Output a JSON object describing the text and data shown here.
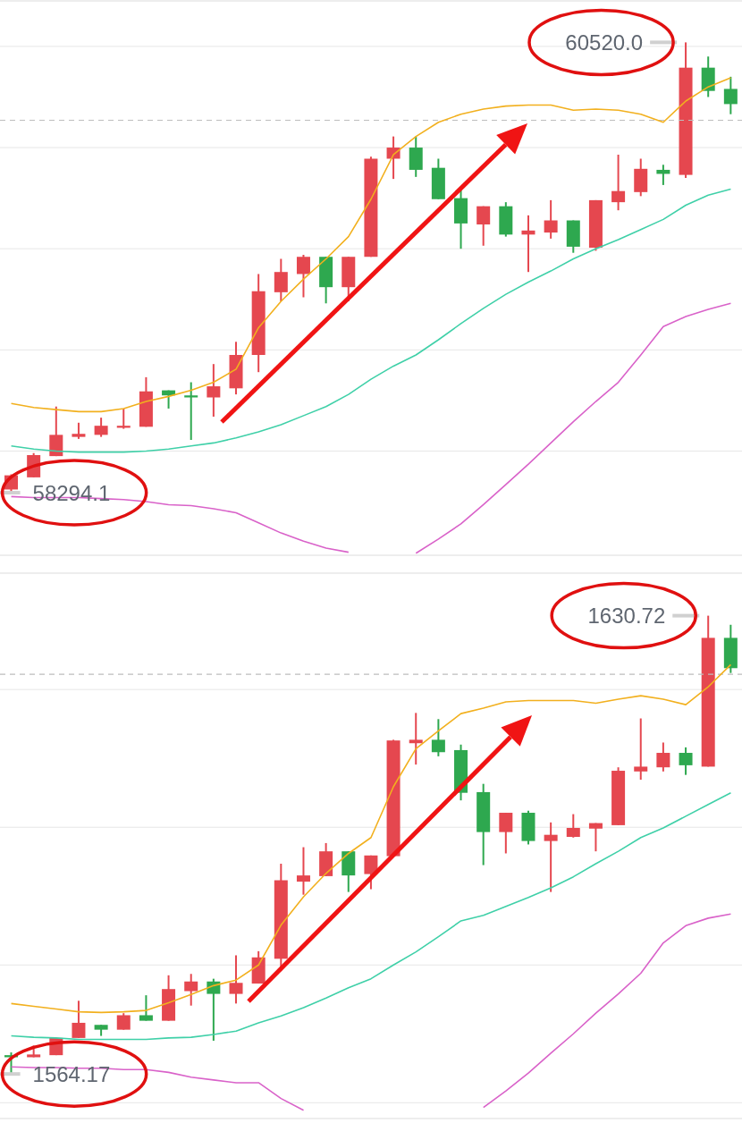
{
  "chart_data": [
    {
      "type": "candlestick",
      "categories": [
        null,
        null,
        null,
        null,
        null,
        null,
        null,
        null,
        null,
        null,
        null,
        null,
        null,
        null,
        null,
        null,
        null,
        null,
        null,
        null,
        null,
        null,
        null,
        null,
        null,
        null,
        null,
        null,
        null,
        null,
        null,
        null,
        null
      ],
      "ohlc": [
        [
          58310,
          58385,
          58294.1,
          58380
        ],
        [
          58370,
          58490,
          58370,
          58480
        ],
        [
          58475,
          58720,
          58475,
          58580
        ],
        [
          58570,
          58640,
          58560,
          58585
        ],
        [
          58580,
          58665,
          58570,
          58625
        ],
        [
          58615,
          58710,
          58610,
          58625
        ],
        [
          58620,
          58865,
          58620,
          58795
        ],
        [
          58800,
          58800,
          58710,
          58775
        ],
        [
          58775,
          58840,
          58555,
          58765
        ],
        [
          58765,
          58930,
          58670,
          58820
        ],
        [
          58810,
          59040,
          58780,
          58975
        ],
        [
          58975,
          59375,
          58890,
          59290
        ],
        [
          59285,
          59450,
          59240,
          59385
        ],
        [
          59375,
          59470,
          59260,
          59460
        ],
        [
          59460,
          59460,
          59230,
          59310
        ],
        [
          59310,
          59460,
          59240,
          59460
        ],
        [
          59460,
          59955,
          59460,
          59945
        ],
        [
          59945,
          60055,
          59845,
          60000
        ],
        [
          60000,
          60055,
          59855,
          59890
        ],
        [
          59900,
          59945,
          59745,
          59745
        ],
        [
          59750,
          59790,
          59500,
          59625
        ],
        [
          59620,
          59710,
          59515,
          59710
        ],
        [
          59710,
          59730,
          59560,
          59570
        ],
        [
          59570,
          59665,
          59385,
          59590
        ],
        [
          59580,
          59740,
          59550,
          59640
        ],
        [
          59640,
          59640,
          59480,
          59510
        ],
        [
          59505,
          59740,
          59490,
          59740
        ],
        [
          59730,
          59965,
          59690,
          59785
        ],
        [
          59780,
          59945,
          59760,
          59895
        ],
        [
          59890,
          59915,
          59815,
          59870
        ],
        [
          59865,
          60520.0,
          59850,
          60395
        ],
        [
          60395,
          60450,
          60250,
          60280
        ],
        [
          60290,
          60350,
          60165,
          60215
        ]
      ],
      "colors": [
        "#e5474f",
        "#e5474f",
        "#e5474f",
        "#e5474f",
        "#e5474f",
        "#e5474f",
        "#e5474f",
        "#2ea84f",
        "#2ea84f",
        "#e5474f",
        "#e5474f",
        "#e5474f",
        "#e5474f",
        "#e5474f",
        "#2ea84f",
        "#e5474f",
        "#e5474f",
        "#e5474f",
        "#2ea84f",
        "#2ea84f",
        "#2ea84f",
        "#e5474f",
        "#2ea84f",
        "#e5474f",
        "#e5474f",
        "#2ea84f",
        "#e5474f",
        "#e5474f",
        "#e5474f",
        "#2ea84f",
        "#e5474f",
        "#2ea84f",
        "#2ea84f"
      ],
      "series": [
        {
          "type": "line",
          "color": "#f2b01e",
          "values": [
            58735,
            58715,
            58705,
            58695,
            58695,
            58710,
            58745,
            58770,
            58800,
            58840,
            58905,
            59110,
            59240,
            59350,
            59450,
            59560,
            59745,
            59965,
            60055,
            60125,
            60165,
            60190,
            60205,
            60210,
            60210,
            60185,
            60190,
            60185,
            60165,
            60125,
            60230,
            60300,
            60345
          ]
        },
        {
          "type": "line",
          "color": "#3fd0a8",
          "values": [
            58525,
            58510,
            58500,
            58495,
            58495,
            58495,
            58500,
            58510,
            58525,
            58540,
            58565,
            58595,
            58630,
            58675,
            58720,
            58780,
            58855,
            58920,
            58975,
            59050,
            59130,
            59205,
            59275,
            59335,
            59390,
            59450,
            59500,
            59545,
            59595,
            59645,
            59715,
            59765,
            59795
          ]
        },
        {
          "type": "line",
          "color": "#d962c9",
          "values": [
            58275,
            58270,
            58270,
            58270,
            58265,
            58260,
            58250,
            58235,
            58230,
            58215,
            58195,
            58145,
            58095,
            58055,
            58020,
            58000,
            null,
            null,
            57995,
            58065,
            58140,
            58235,
            58335,
            58435,
            58540,
            58645,
            58745,
            58840,
            58975,
            59115,
            59165,
            59200,
            59230
          ]
        }
      ],
      "ylim": [
        57985,
        60725
      ],
      "yticks": [
        {
          "value": 58500,
          "label": null
        },
        {
          "value": 59000,
          "label": null
        },
        {
          "value": 59500,
          "label": null
        },
        {
          "value": 60000,
          "label": null
        },
        {
          "value": 60500,
          "label": null
        }
      ],
      "grid": "y",
      "tick_labels": false,
      "ref_lines": [
        {
          "axis": "y",
          "value": 60135,
          "color": "#bdbdbd",
          "line_style": "dashed"
        }
      ],
      "annotations": [
        "60520.0",
        "58294.1"
      ]
    },
    {
      "type": "candlestick",
      "categories": [
        null,
        null,
        null,
        null,
        null,
        null,
        null,
        null,
        null,
        null,
        null,
        null,
        null,
        null,
        null,
        null,
        null,
        null,
        null,
        null,
        null,
        null,
        null,
        null,
        null,
        null,
        null,
        null,
        null,
        null,
        null,
        null,
        null
      ],
      "ohlc": [
        [
          1566.9,
          1567.3,
          1564.17,
          1566.6
        ],
        [
          1566.6,
          1568.3,
          1566.6,
          1567.0
        ],
        [
          1566.9,
          1569.4,
          1566.9,
          1569.4
        ],
        [
          1569.4,
          1574.8,
          1569.4,
          1571.6
        ],
        [
          1571.3,
          1571.3,
          1569.7,
          1570.6
        ],
        [
          1570.6,
          1573.0,
          1570.6,
          1572.7
        ],
        [
          1572.7,
          1575.6,
          1571.9,
          1571.9
        ],
        [
          1571.9,
          1578.5,
          1571.9,
          1576.5
        ],
        [
          1576.2,
          1578.7,
          1574.1,
          1577.6
        ],
        [
          1577.6,
          1578.0,
          1569.0,
          1575.8
        ],
        [
          1575.8,
          1581.4,
          1574.4,
          1577.4
        ],
        [
          1577.3,
          1582.0,
          1577.3,
          1581.1
        ],
        [
          1580.9,
          1594.7,
          1579.1,
          1592.3
        ],
        [
          1592.1,
          1597.1,
          1590.2,
          1593.0
        ],
        [
          1592.9,
          1597.7,
          1592.9,
          1596.5
        ],
        [
          1596.5,
          1596.5,
          1590.6,
          1593.0
        ],
        [
          1593.2,
          1595.9,
          1591.0,
          1595.9
        ],
        [
          1595.8,
          1612.7,
          1595.8,
          1612.6
        ],
        [
          1612.2,
          1616.6,
          1609.1,
          1612.7
        ],
        [
          1612.7,
          1615.7,
          1610.3,
          1610.9
        ],
        [
          1611.2,
          1612.0,
          1603.9,
          1605.0
        ],
        [
          1605.1,
          1606.3,
          1594.5,
          1599.3
        ],
        [
          1599.3,
          1602.1,
          1596.2,
          1602.1
        ],
        [
          1602.1,
          1602.4,
          1597.5,
          1598.0
        ],
        [
          1598.0,
          1600.7,
          1590.6,
          1598.9
        ],
        [
          1598.6,
          1601.9,
          1598.5,
          1599.9
        ],
        [
          1599.8,
          1600.6,
          1596.5,
          1600.6
        ],
        [
          1600.3,
          1608.7,
          1600.3,
          1608.2
        ],
        [
          1608.1,
          1615.8,
          1606.9,
          1608.8
        ],
        [
          1608.7,
          1612.3,
          1608.1,
          1610.8
        ],
        [
          1610.8,
          1611.6,
          1607.6,
          1609.0
        ],
        [
          1608.8,
          1630.72,
          1608.8,
          1627.5
        ],
        [
          1627.5,
          1629.4,
          1622.4,
          1623.1
        ]
      ],
      "colors": [
        "#2ea84f",
        "#e5474f",
        "#e5474f",
        "#e5474f",
        "#2ea84f",
        "#e5474f",
        "#2ea84f",
        "#e5474f",
        "#e5474f",
        "#2ea84f",
        "#e5474f",
        "#e5474f",
        "#e5474f",
        "#e5474f",
        "#e5474f",
        "#2ea84f",
        "#e5474f",
        "#e5474f",
        "#e5474f",
        "#2ea84f",
        "#2ea84f",
        "#2ea84f",
        "#e5474f",
        "#2ea84f",
        "#e5474f",
        "#e5474f",
        "#e5474f",
        "#e5474f",
        "#e5474f",
        "#e5474f",
        "#2ea84f",
        "#e5474f",
        "#2ea84f"
      ],
      "series": [
        {
          "type": "line",
          "color": "#f2b01e",
          "values": [
            1574.4,
            1574.0,
            1573.6,
            1573.2,
            1573.1,
            1573.2,
            1573.4,
            1574.5,
            1575.7,
            1577.0,
            1577.8,
            1580.0,
            1585.8,
            1589.9,
            1593.3,
            1596.2,
            1598.5,
            1605.9,
            1611.4,
            1614.0,
            1616.5,
            1617.3,
            1618.2,
            1618.4,
            1618.4,
            1618.4,
            1618.0,
            1618.6,
            1619.1,
            1618.6,
            1617.8,
            1620.4,
            1623.6
          ]
        },
        {
          "type": "line",
          "color": "#3fd0a8",
          "values": [
            1569.7,
            1569.5,
            1569.4,
            1569.2,
            1569.2,
            1569.2,
            1569.2,
            1569.4,
            1569.5,
            1569.9,
            1570.4,
            1571.6,
            1572.6,
            1573.8,
            1575.2,
            1576.7,
            1578.0,
            1580.0,
            1581.9,
            1584.1,
            1586.4,
            1587.2,
            1588.5,
            1589.8,
            1591.2,
            1592.8,
            1594.7,
            1596.5,
            1598.5,
            1599.9,
            1601.6,
            1603.3,
            1605.0
          ]
        },
        {
          "type": "line",
          "color": "#d962c9",
          "values": [
            1565.2,
            1565.1,
            1565.1,
            1565.0,
            1565.0,
            1564.8,
            1564.8,
            1564.4,
            1563.7,
            1563.3,
            1562.9,
            1562.9,
            1560.6,
            1558.9,
            null,
            null,
            null,
            null,
            null,
            null,
            null,
            1559.3,
            1561.7,
            1564.3,
            1567.2,
            1570.0,
            1573.0,
            1575.8,
            1578.8,
            1583.2,
            1585.7,
            1586.8,
            1587.4
          ]
        }
      ],
      "ylim": [
        1557.7,
        1636.9
      ],
      "yticks": [
        {
          "value": 1560,
          "label": null
        },
        {
          "value": 1580,
          "label": null
        },
        {
          "value": 1600,
          "label": null
        },
        {
          "value": 1620,
          "label": null
        }
      ],
      "grid": "y",
      "tick_labels": false,
      "ref_lines": [
        {
          "axis": "y",
          "value": 1622.2,
          "color": "#bdbdbd",
          "line_style": "dashed"
        }
      ],
      "annotations": [
        "1630.72",
        "1564.17"
      ]
    }
  ]
}
